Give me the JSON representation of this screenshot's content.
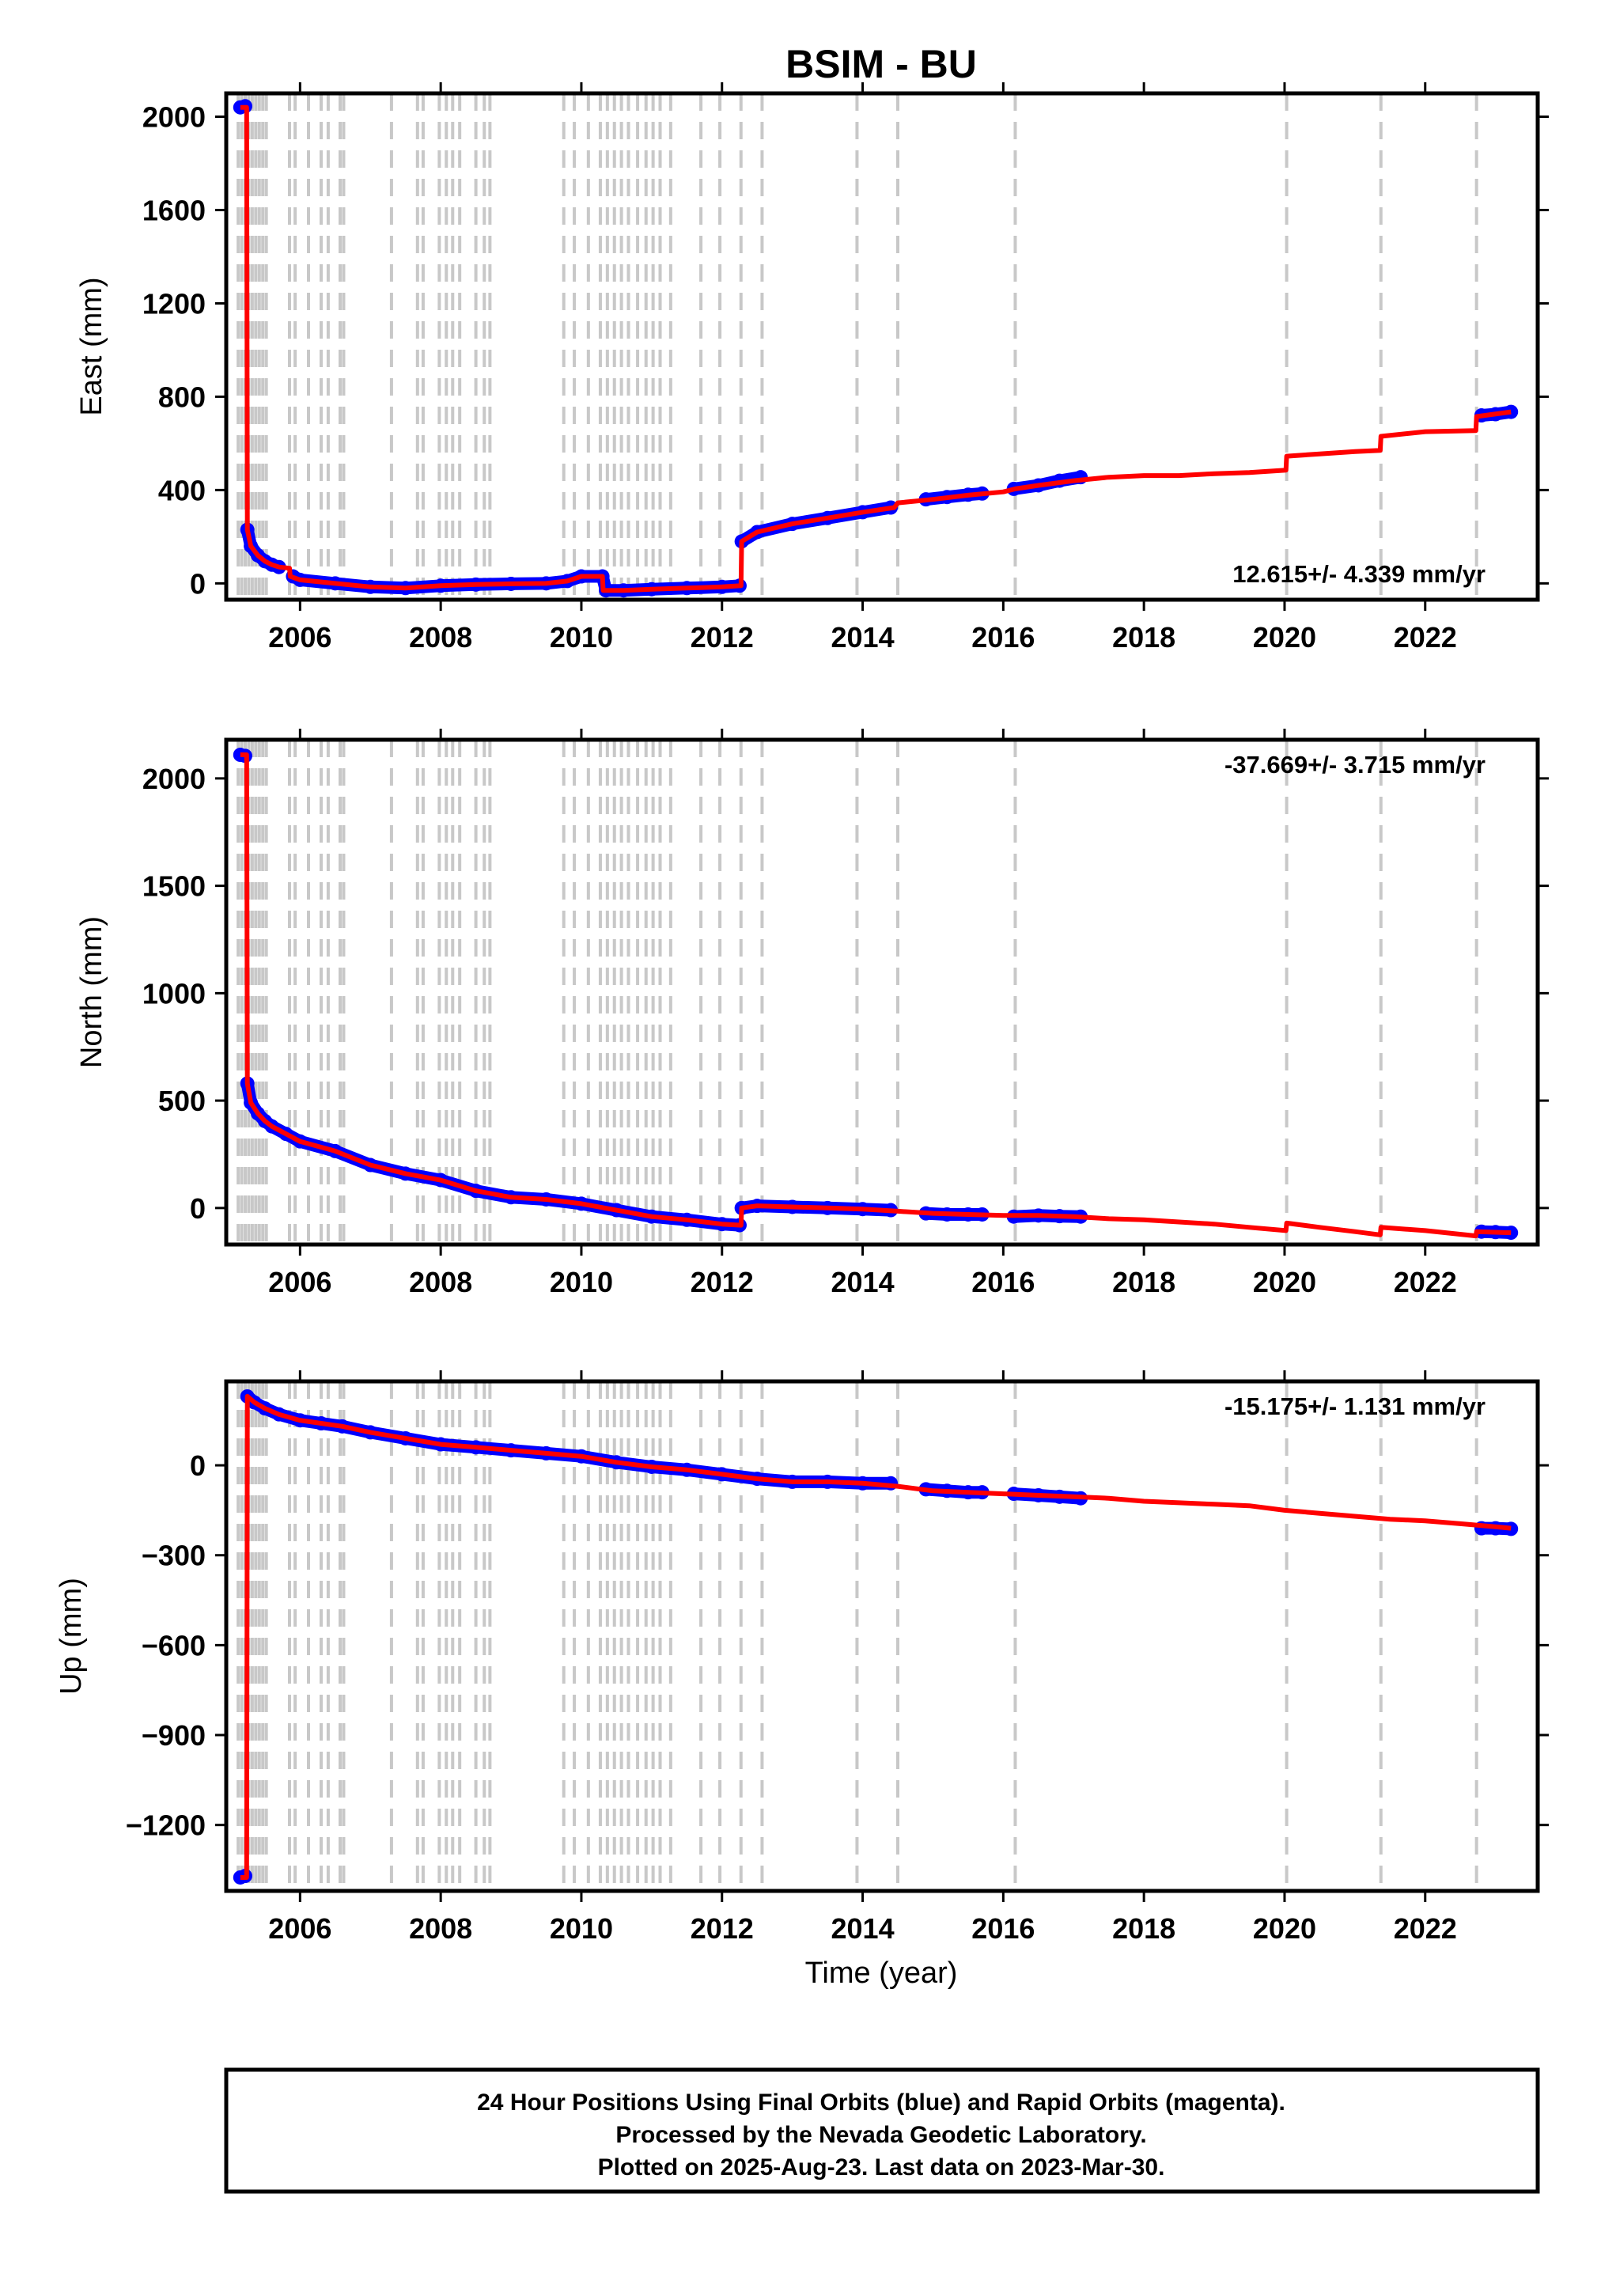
{
  "title": "BSIM - BU",
  "colors": {
    "final_points": "#0000ff",
    "model_line": "#ff0000",
    "event_lines": "#c8c8c8",
    "frame": "#000000"
  },
  "events": [
    2005.12,
    2005.17,
    2005.22,
    2005.27,
    2005.32,
    2005.37,
    2005.42,
    2005.47,
    2005.52,
    2005.85,
    2005.93,
    2006.12,
    2006.3,
    2006.4,
    2006.57,
    2006.62,
    2007.3,
    2007.67,
    2007.75,
    2007.98,
    2008.08,
    2008.17,
    2008.27,
    2008.5,
    2008.62,
    2008.7,
    2009.75,
    2009.9,
    2010.1,
    2010.27,
    2010.37,
    2010.47,
    2010.57,
    2010.67,
    2010.8,
    2010.92,
    2011.02,
    2011.12,
    2011.27,
    2011.7,
    2011.97,
    2012.27,
    2012.57,
    2013.92,
    2014.5,
    2016.17,
    2020.03,
    2021.37,
    2022.73
  ],
  "time_range": [
    2004.95,
    2023.6
  ],
  "x_ticks": [
    "2006",
    "2008",
    "2010",
    "2012",
    "2014",
    "2016",
    "2018",
    "2020",
    "2022"
  ],
  "x_axis_title": "Time (year)",
  "footer": {
    "line1": "24 Hour Positions Using Final Orbits (blue) and Rapid Orbits (magenta).",
    "line2": "Processed by the Nevada Geodetic Laboratory.",
    "line3": "Plotted on 2025-Aug-23. Last data on 2023-Mar-30."
  },
  "chart_data": [
    {
      "type": "scatter",
      "name": "east",
      "ylabel": "East (mm)",
      "ylim": [
        -70,
        2100
      ],
      "y_ticks": [
        "0",
        "400",
        "800",
        "1200",
        "1600",
        "2000"
      ],
      "rate_text": "12.615+/- 4.339 mm/yr",
      "rate_position": "bottom-right",
      "grid": false,
      "final_orbit_segments": [
        {
          "x": [
            2005.15,
            2005.22
          ],
          "y": [
            2040,
            2045
          ]
        },
        {
          "x": [
            2005.25,
            2005.3,
            2005.4,
            2005.5,
            2005.6,
            2005.7
          ],
          "y": [
            230,
            160,
            120,
            95,
            80,
            70
          ]
        },
        {
          "x": [
            2005.9,
            2006.0,
            2006.5,
            2007.0,
            2007.5,
            2008.0,
            2008.5,
            2009.0,
            2009.5,
            2009.8,
            2010.0,
            2010.3,
            2010.35,
            2010.6,
            2011.0,
            2011.5,
            2012.0,
            2012.25
          ],
          "y": [
            30,
            15,
            0,
            -15,
            -20,
            -10,
            -5,
            -2,
            0,
            10,
            30,
            30,
            -30,
            -30,
            -25,
            -20,
            -15,
            -10
          ]
        },
        {
          "x": [
            2012.28,
            2012.5,
            2013.0,
            2013.5,
            2014.0,
            2014.4
          ],
          "y": [
            180,
            220,
            255,
            280,
            305,
            325
          ]
        },
        {
          "x": [
            2014.9,
            2015.2,
            2015.5,
            2015.7
          ],
          "y": [
            360,
            370,
            380,
            385
          ]
        },
        {
          "x": [
            2016.15,
            2016.5,
            2016.8,
            2017.1
          ],
          "y": [
            405,
            420,
            440,
            455
          ]
        },
        {
          "x": [
            2022.8,
            2023.0,
            2023.22
          ],
          "y": [
            720,
            725,
            735
          ]
        }
      ],
      "model_line": {
        "x": [
          2005.15,
          2005.24,
          2005.25,
          2005.3,
          2005.4,
          2005.5,
          2005.6,
          2005.7,
          2005.85,
          2005.86,
          2006.0,
          2006.5,
          2007.0,
          2007.5,
          2008.0,
          2008.5,
          2009.0,
          2009.5,
          2009.8,
          2010.0,
          2010.3,
          2010.31,
          2010.6,
          2011.0,
          2011.5,
          2012.0,
          2012.27,
          2012.28,
          2012.5,
          2013.0,
          2013.5,
          2014.0,
          2014.45,
          2014.5,
          2015.0,
          2015.5,
          2016.0,
          2016.17,
          2016.5,
          2017.0,
          2017.5,
          2018.0,
          2018.5,
          2019.0,
          2019.5,
          2020.02,
          2020.03,
          2020.5,
          2021.0,
          2021.36,
          2021.37,
          2022.0,
          2022.72,
          2022.73,
          2023.22
        ],
        "y": [
          2040,
          2040,
          230,
          160,
          120,
          95,
          80,
          70,
          65,
          30,
          15,
          0,
          -15,
          -20,
          -10,
          -5,
          -2,
          0,
          10,
          30,
          30,
          -30,
          -30,
          -25,
          -20,
          -15,
          -10,
          180,
          220,
          255,
          280,
          305,
          325,
          345,
          360,
          378,
          392,
          405,
          420,
          440,
          455,
          462,
          462,
          470,
          475,
          485,
          545,
          555,
          565,
          570,
          630,
          650,
          655,
          715,
          735
        ]
      }
    },
    {
      "type": "scatter",
      "name": "north",
      "ylabel": "North (mm)",
      "ylim": [
        -170,
        2180
      ],
      "y_ticks": [
        "0",
        "500",
        "1000",
        "1500",
        "2000"
      ],
      "rate_text": "-37.669+/- 3.715 mm/yr",
      "rate_position": "top-right",
      "grid": false,
      "final_orbit_segments": [
        {
          "x": [
            2005.15,
            2005.22
          ],
          "y": [
            2110,
            2105
          ]
        },
        {
          "x": [
            2005.25,
            2005.3,
            2005.4,
            2005.5,
            2005.6,
            2005.8,
            2006.0,
            2006.5,
            2007.0,
            2007.5,
            2008.0,
            2008.5,
            2009.0,
            2009.5,
            2010.0,
            2010.5,
            2011.0,
            2011.5,
            2012.0,
            2012.25
          ],
          "y": [
            580,
            490,
            440,
            405,
            380,
            345,
            310,
            265,
            200,
            160,
            130,
            80,
            50,
            40,
            20,
            -10,
            -40,
            -55,
            -75,
            -80
          ]
        },
        {
          "x": [
            2012.28,
            2012.5,
            2013.0,
            2013.5,
            2014.0,
            2014.4
          ],
          "y": [
            0,
            10,
            5,
            0,
            -5,
            -10
          ]
        },
        {
          "x": [
            2014.9,
            2015.2,
            2015.5,
            2015.7
          ],
          "y": [
            -25,
            -30,
            -30,
            -30
          ]
        },
        {
          "x": [
            2016.15,
            2016.5,
            2016.8,
            2017.1
          ],
          "y": [
            -40,
            -35,
            -38,
            -40
          ]
        },
        {
          "x": [
            2022.8,
            2023.0,
            2023.22
          ],
          "y": [
            -110,
            -112,
            -115
          ]
        }
      ],
      "model_line": {
        "x": [
          2005.15,
          2005.24,
          2005.25,
          2005.3,
          2005.4,
          2005.5,
          2005.6,
          2005.8,
          2006.0,
          2006.5,
          2007.0,
          2007.5,
          2008.0,
          2008.5,
          2009.0,
          2009.5,
          2010.0,
          2010.5,
          2011.0,
          2011.5,
          2012.0,
          2012.27,
          2012.28,
          2012.5,
          2013.0,
          2013.5,
          2014.0,
          2014.5,
          2015.0,
          2015.5,
          2016.0,
          2016.5,
          2017.0,
          2017.5,
          2018.0,
          2018.5,
          2019.0,
          2019.5,
          2020.02,
          2020.03,
          2020.5,
          2021.0,
          2021.36,
          2021.37,
          2022.0,
          2022.72,
          2022.73,
          2023.22
        ],
        "y": [
          2110,
          2110,
          580,
          490,
          440,
          405,
          380,
          345,
          310,
          265,
          200,
          160,
          130,
          80,
          50,
          40,
          20,
          -10,
          -40,
          -55,
          -75,
          -80,
          0,
          10,
          5,
          0,
          -5,
          -15,
          -25,
          -30,
          -35,
          -35,
          -40,
          -50,
          -55,
          -65,
          -75,
          -90,
          -105,
          -70,
          -90,
          -110,
          -125,
          -90,
          -105,
          -130,
          -110,
          -115
        ]
      }
    },
    {
      "type": "scatter",
      "name": "up",
      "ylabel": "Up (mm)",
      "ylim": [
        -1420,
        280
      ],
      "y_ticks": [
        "0",
        "−300",
        "−600",
        "−900",
        "−1200"
      ],
      "rate_text": "-15.175+/- 1.131 mm/yr",
      "rate_position": "top-right",
      "grid": false,
      "final_orbit_segments": [
        {
          "x": [
            2005.15,
            2005.22
          ],
          "y": [
            -1375,
            -1370
          ]
        },
        {
          "x": [
            2005.25,
            2005.35,
            2005.5,
            2005.7,
            2006.0,
            2006.3,
            2006.6,
            2007.0,
            2007.5,
            2008.0,
            2008.5,
            2009.0,
            2009.5,
            2010.0,
            2010.5,
            2011.0,
            2011.5,
            2012.0,
            2012.5,
            2013.0,
            2013.5,
            2014.0,
            2014.4
          ],
          "y": [
            230,
            210,
            190,
            170,
            150,
            140,
            130,
            110,
            90,
            70,
            60,
            50,
            40,
            30,
            10,
            -5,
            -15,
            -30,
            -45,
            -55,
            -55,
            -60,
            -60
          ]
        },
        {
          "x": [
            2014.9,
            2015.2,
            2015.5,
            2015.7
          ],
          "y": [
            -80,
            -85,
            -90,
            -90
          ]
        },
        {
          "x": [
            2016.15,
            2016.5,
            2016.8,
            2017.1
          ],
          "y": [
            -95,
            -100,
            -105,
            -110
          ]
        },
        {
          "x": [
            2022.8,
            2023.0,
            2023.22
          ],
          "y": [
            -210,
            -210,
            -212
          ]
        }
      ],
      "model_line": {
        "x": [
          2005.15,
          2005.24,
          2005.25,
          2005.35,
          2005.5,
          2005.7,
          2006.0,
          2006.3,
          2006.6,
          2007.0,
          2007.5,
          2008.0,
          2008.5,
          2009.0,
          2009.5,
          2010.0,
          2010.5,
          2011.0,
          2011.5,
          2012.0,
          2012.5,
          2013.0,
          2013.5,
          2014.0,
          2014.5,
          2015.0,
          2015.5,
          2016.0,
          2016.5,
          2017.0,
          2017.5,
          2018.0,
          2018.5,
          2019.0,
          2019.5,
          2020.0,
          2020.5,
          2021.0,
          2021.5,
          2022.0,
          2022.5,
          2023.0,
          2023.22
        ],
        "y": [
          -1375,
          -1375,
          230,
          210,
          190,
          170,
          150,
          140,
          130,
          110,
          90,
          70,
          60,
          50,
          40,
          30,
          10,
          -5,
          -15,
          -30,
          -45,
          -55,
          -55,
          -60,
          -70,
          -85,
          -90,
          -95,
          -100,
          -105,
          -110,
          -120,
          -125,
          -130,
          -135,
          -150,
          -160,
          -170,
          -180,
          -185,
          -195,
          -205,
          -210
        ]
      }
    }
  ]
}
